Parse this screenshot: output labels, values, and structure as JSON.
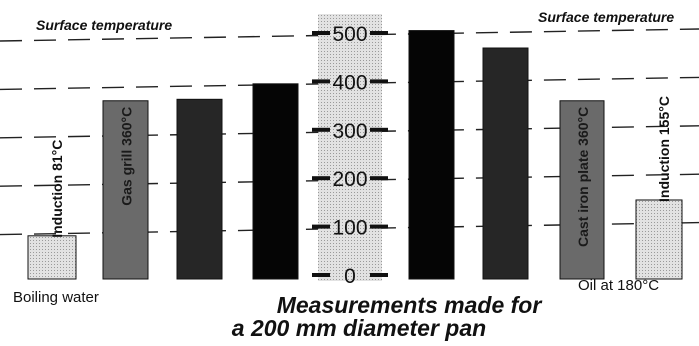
{
  "chart_data": {
    "type": "bar",
    "ylim": [
      0,
      500
    ],
    "y_ticks": [
      "0",
      "100",
      "200",
      "300",
      "400",
      "500"
    ],
    "grid": "dashed",
    "surface_temperature_label_left": "Surface temperature",
    "surface_temperature_label_right": "Surface temperature",
    "bars": [
      {
        "value": 81,
        "style": "light",
        "label": "Induction 81°C"
      },
      {
        "value": 360,
        "style": "mid",
        "label": "Gas grill 360°C"
      },
      {
        "value": 363,
        "style": "dark",
        "label": ""
      },
      {
        "value": 395,
        "style": "black",
        "label": ""
      },
      {
        "value": 505,
        "style": "black",
        "label": ""
      },
      {
        "value": 469,
        "style": "dark",
        "label": ""
      },
      {
        "value": 360,
        "style": "mid",
        "label": "Cast iron plate 360°C"
      },
      {
        "value": 155,
        "style": "light",
        "label": "Induction 155°C"
      }
    ],
    "bottom_label_left": "Boiling water",
    "bottom_label_right": "Oil at 180°C",
    "caption_line1": "Measurements made for",
    "caption_line2": "a 200 mm diameter pan",
    "colors": {
      "light": "#cfcfcf",
      "mid": "#6a6a6a",
      "dark": "#262626",
      "black": "#050505",
      "axis_column": "#d2d2d2",
      "grid": "#222222"
    }
  }
}
